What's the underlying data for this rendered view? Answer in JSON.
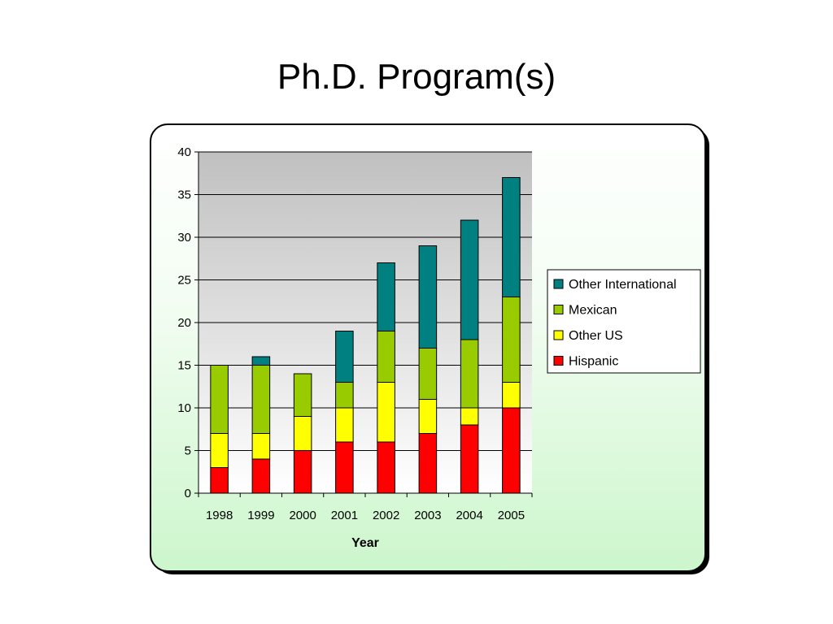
{
  "slide": {
    "title": "Ph.D. Program(s)"
  },
  "chart_data": {
    "type": "bar",
    "stacked": true,
    "categories": [
      "1998",
      "1999",
      "2000",
      "2001",
      "2002",
      "2003",
      "2004",
      "2005"
    ],
    "series": [
      {
        "name": "Hispanic",
        "color": "#ff0000",
        "values": [
          3,
          4,
          5,
          6,
          6,
          7,
          8,
          10
        ]
      },
      {
        "name": "Other US",
        "color": "#ffff00",
        "values": [
          4,
          3,
          4,
          4,
          7,
          4,
          2,
          3
        ]
      },
      {
        "name": "Mexican",
        "color": "#99cc00",
        "values": [
          8,
          8,
          5,
          3,
          6,
          6,
          8,
          10
        ]
      },
      {
        "name": "Other International",
        "color": "#008080",
        "values": [
          0,
          1,
          0,
          6,
          8,
          12,
          14,
          14
        ]
      }
    ],
    "xlabel": "Year",
    "ylabel": "",
    "ylim": [
      0,
      40
    ],
    "yticks": [
      0,
      5,
      10,
      15,
      20,
      25,
      30,
      35,
      40
    ],
    "grid": true,
    "legend_position": "right"
  }
}
